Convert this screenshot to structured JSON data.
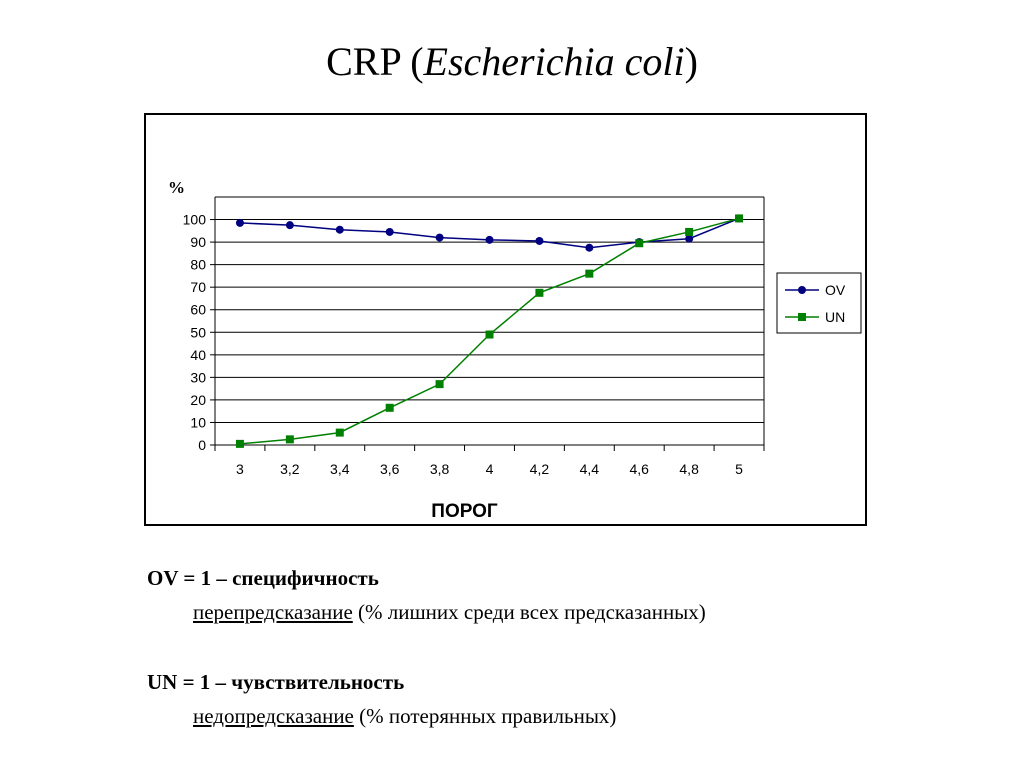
{
  "title": {
    "prefix": "CRP (",
    "italic": "Escherichia coli",
    "suffix": ")"
  },
  "chart_data": {
    "type": "line",
    "ylabel": "%",
    "xlabel": "ПОРОГ",
    "x": [
      3,
      3.2,
      3.4,
      3.6,
      3.8,
      4,
      4.2,
      4.4,
      4.6,
      4.8,
      5
    ],
    "x_tick_labels": [
      "3",
      "3,2",
      "3,4",
      "3,6",
      "3,8",
      "4",
      "4,2",
      "4,4",
      "4,6",
      "4,8",
      "5"
    ],
    "y_ticks": [
      0,
      10,
      20,
      30,
      40,
      50,
      60,
      70,
      80,
      90,
      100
    ],
    "ylim": [
      0,
      110
    ],
    "grid": true,
    "legend": "right",
    "series": [
      {
        "name": "OV",
        "color": "#000080",
        "marker": "circle",
        "values": [
          98.5,
          97.5,
          95.5,
          94.5,
          92,
          91,
          90.5,
          87.5,
          90,
          91.5,
          100.5
        ]
      },
      {
        "name": "UN",
        "color": "#008000",
        "marker": "square",
        "values": [
          0.5,
          2.5,
          5.5,
          16.5,
          27,
          49,
          67.5,
          76,
          89.5,
          94.5,
          100.5
        ]
      }
    ]
  },
  "notes": {
    "ov_line1": "OV = 1 – специфичность",
    "ov_line2_term": "перепредсказание",
    "ov_line2_rest": " (% лишних среди всех предсказанных)",
    "un_line1": "UN = 1 – чувствительность",
    "un_line2_term": "недопредсказание",
    "un_line2_rest": " (% потерянных правильных)"
  }
}
